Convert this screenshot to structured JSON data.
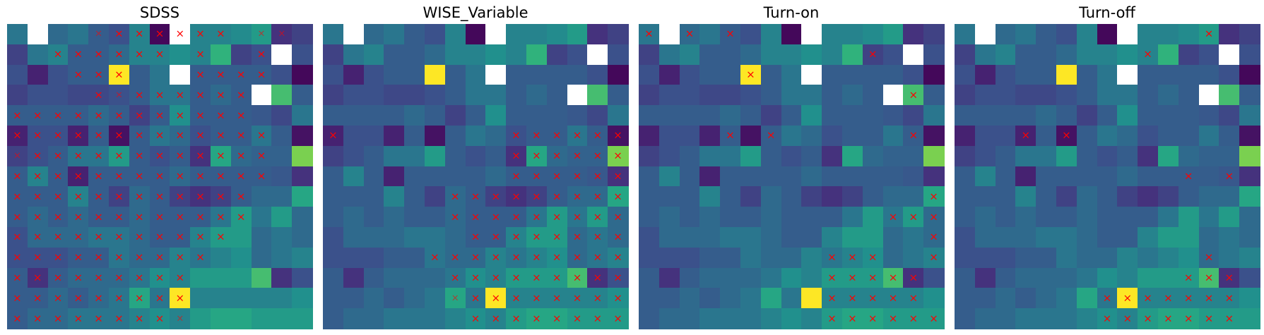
{
  "chart_data": {
    "type": "heatmap",
    "grid_size": [
      15,
      15
    ],
    "colormap": "viridis",
    "value_range": [
      0,
      1
    ],
    "masked_color": "#ffffff",
    "marker": {
      "symbol": "×",
      "color": "#ff0000"
    },
    "background_values": [
      [
        0.4,
        -1,
        0.35,
        0.4,
        0.3,
        0.25,
        0.45,
        0.02,
        -1,
        0.45,
        0.45,
        0.48,
        0.55,
        0.15,
        0.2
      ],
      [
        0.2,
        0.4,
        0.45,
        0.3,
        0.3,
        0.35,
        0.45,
        0.45,
        0.5,
        0.45,
        0.65,
        0.2,
        0.25,
        -1,
        0.25
      ],
      [
        0.25,
        0.1,
        0.25,
        0.3,
        0.3,
        1.0,
        0.3,
        0.4,
        -1,
        0.3,
        0.3,
        0.3,
        0.3,
        0.25,
        0.02
      ],
      [
        0.2,
        0.25,
        0.25,
        0.22,
        0.22,
        0.25,
        0.3,
        0.4,
        0.4,
        0.3,
        0.35,
        0.3,
        -1,
        0.7,
        0.3
      ],
      [
        0.3,
        0.3,
        0.3,
        0.3,
        0.35,
        0.3,
        0.2,
        0.3,
        0.5,
        0.3,
        0.3,
        0.3,
        0.28,
        0.22,
        0.4
      ],
      [
        0.1,
        0.25,
        0.25,
        0.1,
        0.3,
        0.05,
        0.3,
        0.4,
        0.35,
        0.25,
        0.3,
        0.3,
        0.4,
        0.3,
        0.05
      ],
      [
        0.2,
        0.25,
        0.3,
        0.4,
        0.4,
        0.55,
        0.3,
        0.25,
        0.3,
        0.15,
        0.6,
        0.35,
        0.32,
        0.32,
        0.8
      ],
      [
        0.3,
        0.45,
        0.3,
        0.1,
        0.3,
        0.3,
        0.3,
        0.3,
        0.35,
        0.3,
        0.3,
        0.3,
        0.3,
        0.28,
        0.15
      ],
      [
        0.3,
        0.3,
        0.3,
        0.45,
        0.3,
        0.2,
        0.35,
        0.3,
        0.2,
        0.15,
        0.2,
        0.3,
        0.35,
        0.35,
        0.6
      ],
      [
        0.3,
        0.35,
        0.3,
        0.35,
        0.3,
        0.3,
        0.35,
        0.3,
        0.3,
        0.3,
        0.4,
        0.55,
        0.4,
        0.55,
        0.35
      ],
      [
        0.25,
        0.35,
        0.35,
        0.35,
        0.4,
        0.4,
        0.35,
        0.3,
        0.3,
        0.45,
        0.55,
        0.55,
        0.35,
        0.4,
        0.35
      ],
      [
        0.25,
        0.25,
        0.25,
        0.3,
        0.3,
        0.4,
        0.35,
        0.35,
        0.45,
        0.4,
        0.45,
        0.5,
        0.35,
        0.4,
        0.45
      ],
      [
        0.3,
        0.15,
        0.3,
        0.35,
        0.35,
        0.35,
        0.4,
        0.5,
        0.45,
        0.55,
        0.55,
        0.55,
        0.7,
        0.15,
        0.25
      ],
      [
        0.3,
        0.3,
        0.35,
        0.3,
        0.35,
        0.4,
        0.6,
        0.4,
        1.0,
        0.45,
        0.45,
        0.45,
        0.45,
        0.45,
        0.5
      ],
      [
        0.3,
        0.35,
        0.35,
        0.4,
        0.4,
        0.4,
        0.45,
        0.5,
        0.45,
        0.55,
        0.6,
        0.6,
        0.55,
        0.55,
        0.55
      ]
    ],
    "panels": [
      {
        "title": "SDSS",
        "marks": [
          [
            0,
            0,
            0,
            0,
            2,
            1,
            1,
            1,
            1,
            1,
            1,
            0,
            2,
            2,
            0
          ],
          [
            0,
            0,
            1,
            1,
            1,
            1,
            1,
            1,
            0,
            1,
            0,
            0,
            1,
            0,
            0
          ],
          [
            0,
            0,
            0,
            1,
            1,
            1,
            0,
            0,
            0,
            1,
            1,
            1,
            1,
            0,
            0
          ],
          [
            0,
            0,
            0,
            0,
            1,
            2,
            1,
            1,
            1,
            1,
            1,
            1,
            0,
            0,
            0
          ],
          [
            1,
            1,
            1,
            1,
            1,
            1,
            1,
            1,
            1,
            1,
            1,
            1,
            0,
            0,
            0
          ],
          [
            1,
            1,
            1,
            1,
            1,
            1,
            1,
            1,
            1,
            1,
            1,
            1,
            1,
            0,
            0
          ],
          [
            2,
            1,
            1,
            1,
            1,
            1,
            1,
            1,
            1,
            1,
            1,
            1,
            1,
            0,
            0
          ],
          [
            1,
            1,
            1,
            1,
            1,
            1,
            1,
            1,
            1,
            1,
            1,
            1,
            1,
            0,
            0
          ],
          [
            1,
            1,
            1,
            1,
            1,
            1,
            1,
            1,
            1,
            1,
            1,
            1,
            0,
            0,
            0
          ],
          [
            1,
            1,
            1,
            1,
            1,
            1,
            1,
            1,
            1,
            1,
            1,
            1,
            0,
            0,
            0
          ],
          [
            1,
            1,
            1,
            1,
            1,
            1,
            1,
            1,
            1,
            1,
            1,
            0,
            0,
            0,
            0
          ],
          [
            1,
            1,
            1,
            1,
            1,
            1,
            1,
            1,
            1,
            1,
            0,
            0,
            0,
            0,
            0
          ],
          [
            1,
            1,
            1,
            1,
            1,
            1,
            1,
            1,
            1,
            0,
            0,
            0,
            0,
            0,
            0
          ],
          [
            1,
            1,
            1,
            1,
            1,
            1,
            1,
            1,
            1,
            0,
            0,
            0,
            0,
            0,
            0
          ],
          [
            1,
            1,
            1,
            1,
            1,
            1,
            1,
            1,
            2,
            0,
            0,
            0,
            0,
            0,
            0
          ]
        ]
      },
      {
        "title": "WISE_Variable",
        "marks": [
          [
            0,
            0,
            0,
            0,
            0,
            0,
            0,
            0,
            0,
            0,
            0,
            0,
            0,
            0,
            0
          ],
          [
            0,
            0,
            0,
            0,
            0,
            0,
            0,
            0,
            0,
            0,
            0,
            0,
            0,
            0,
            0
          ],
          [
            0,
            0,
            0,
            0,
            0,
            0,
            0,
            0,
            0,
            0,
            0,
            0,
            0,
            0,
            0
          ],
          [
            0,
            0,
            0,
            0,
            0,
            0,
            0,
            0,
            0,
            0,
            0,
            0,
            0,
            0,
            0
          ],
          [
            0,
            0,
            0,
            0,
            0,
            0,
            0,
            0,
            0,
            0,
            0,
            0,
            0,
            0,
            0
          ],
          [
            1,
            0,
            0,
            0,
            0,
            0,
            0,
            0,
            0,
            1,
            1,
            1,
            1,
            1,
            1
          ],
          [
            0,
            0,
            0,
            0,
            0,
            0,
            0,
            0,
            0,
            1,
            1,
            1,
            1,
            1,
            1
          ],
          [
            0,
            0,
            0,
            0,
            0,
            0,
            0,
            0,
            0,
            1,
            1,
            1,
            1,
            1,
            1
          ],
          [
            0,
            0,
            0,
            0,
            0,
            0,
            1,
            1,
            1,
            1,
            1,
            1,
            1,
            1,
            1
          ],
          [
            0,
            0,
            0,
            0,
            0,
            0,
            1,
            1,
            1,
            1,
            1,
            1,
            1,
            1,
            1
          ],
          [
            0,
            0,
            0,
            0,
            0,
            0,
            0,
            1,
            1,
            1,
            1,
            1,
            1,
            1,
            1
          ],
          [
            0,
            0,
            0,
            0,
            0,
            1,
            1,
            1,
            1,
            1,
            1,
            1,
            1,
            1,
            1
          ],
          [
            0,
            0,
            0,
            0,
            0,
            0,
            1,
            1,
            1,
            1,
            1,
            1,
            1,
            1,
            1
          ],
          [
            0,
            0,
            0,
            0,
            0,
            0,
            2,
            1,
            1,
            1,
            1,
            1,
            1,
            1,
            1
          ],
          [
            0,
            0,
            0,
            0,
            0,
            0,
            0,
            1,
            1,
            1,
            1,
            1,
            1,
            1,
            1
          ]
        ]
      },
      {
        "title": "Turn-on",
        "marks": [
          [
            1,
            0,
            1,
            0,
            1,
            0,
            0,
            0,
            0,
            0,
            0,
            0,
            0,
            0,
            0
          ],
          [
            0,
            0,
            0,
            0,
            0,
            0,
            0,
            0,
            0,
            0,
            0,
            1,
            0,
            0,
            0
          ],
          [
            0,
            0,
            0,
            0,
            0,
            1,
            0,
            0,
            0,
            0,
            0,
            0,
            0,
            0,
            0
          ],
          [
            0,
            0,
            0,
            0,
            0,
            0,
            0,
            0,
            0,
            0,
            0,
            0,
            0,
            1,
            0
          ],
          [
            0,
            0,
            0,
            0,
            0,
            0,
            0,
            0,
            0,
            0,
            0,
            0,
            0,
            0,
            0
          ],
          [
            0,
            0,
            0,
            0,
            1,
            0,
            1,
            0,
            0,
            0,
            0,
            0,
            0,
            1,
            0
          ],
          [
            0,
            0,
            0,
            0,
            0,
            0,
            0,
            0,
            0,
            0,
            0,
            0,
            0,
            0,
            0
          ],
          [
            0,
            0,
            0,
            0,
            0,
            0,
            0,
            0,
            0,
            0,
            0,
            0,
            0,
            0,
            0
          ],
          [
            0,
            0,
            0,
            0,
            0,
            0,
            0,
            0,
            0,
            0,
            0,
            0,
            0,
            0,
            1
          ],
          [
            0,
            0,
            0,
            0,
            0,
            0,
            0,
            0,
            0,
            0,
            0,
            0,
            1,
            1,
            1
          ],
          [
            0,
            0,
            0,
            0,
            0,
            0,
            0,
            0,
            0,
            0,
            0,
            0,
            0,
            0,
            1
          ],
          [
            0,
            0,
            0,
            0,
            0,
            0,
            0,
            0,
            0,
            1,
            1,
            1,
            0,
            0,
            1
          ],
          [
            0,
            0,
            0,
            0,
            0,
            0,
            0,
            0,
            0,
            1,
            1,
            1,
            1,
            1,
            0
          ],
          [
            0,
            0,
            0,
            0,
            0,
            0,
            0,
            0,
            0,
            1,
            1,
            1,
            1,
            1,
            0
          ],
          [
            0,
            0,
            0,
            0,
            0,
            0,
            0,
            0,
            0,
            1,
            1,
            1,
            1,
            1,
            1
          ]
        ]
      },
      {
        "title": "Turn-off",
        "marks": [
          [
            0,
            0,
            0,
            0,
            0,
            0,
            0,
            0,
            0,
            0,
            0,
            0,
            1,
            0,
            0
          ],
          [
            0,
            0,
            0,
            0,
            0,
            0,
            0,
            0,
            0,
            1,
            0,
            0,
            0,
            0,
            0
          ],
          [
            0,
            0,
            0,
            0,
            0,
            0,
            0,
            0,
            0,
            0,
            0,
            0,
            0,
            0,
            0
          ],
          [
            0,
            0,
            0,
            0,
            0,
            0,
            0,
            0,
            0,
            0,
            0,
            0,
            0,
            0,
            0
          ],
          [
            0,
            0,
            0,
            0,
            0,
            0,
            0,
            0,
            0,
            0,
            0,
            0,
            0,
            0,
            0
          ],
          [
            0,
            0,
            0,
            1,
            0,
            1,
            0,
            0,
            0,
            0,
            0,
            0,
            0,
            0,
            0
          ],
          [
            0,
            0,
            0,
            0,
            0,
            0,
            0,
            0,
            0,
            0,
            0,
            0,
            0,
            0,
            0
          ],
          [
            0,
            0,
            0,
            0,
            0,
            0,
            0,
            0,
            0,
            0,
            0,
            1,
            0,
            1,
            0
          ],
          [
            0,
            0,
            0,
            0,
            0,
            0,
            0,
            0,
            0,
            0,
            0,
            0,
            0,
            0,
            0
          ],
          [
            0,
            0,
            0,
            0,
            0,
            0,
            0,
            0,
            0,
            0,
            0,
            0,
            0,
            0,
            0
          ],
          [
            0,
            0,
            0,
            0,
            0,
            0,
            0,
            0,
            0,
            0,
            0,
            0,
            0,
            0,
            0
          ],
          [
            0,
            0,
            0,
            0,
            0,
            0,
            0,
            0,
            0,
            0,
            0,
            0,
            1,
            0,
            0
          ],
          [
            0,
            0,
            0,
            0,
            0,
            0,
            0,
            0,
            0,
            0,
            0,
            1,
            1,
            1,
            0
          ],
          [
            0,
            0,
            0,
            0,
            0,
            0,
            0,
            1,
            1,
            1,
            1,
            1,
            1,
            1,
            0
          ],
          [
            0,
            0,
            0,
            0,
            0,
            0,
            0,
            1,
            1,
            1,
            1,
            1,
            1,
            1,
            0
          ]
        ]
      }
    ]
  }
}
